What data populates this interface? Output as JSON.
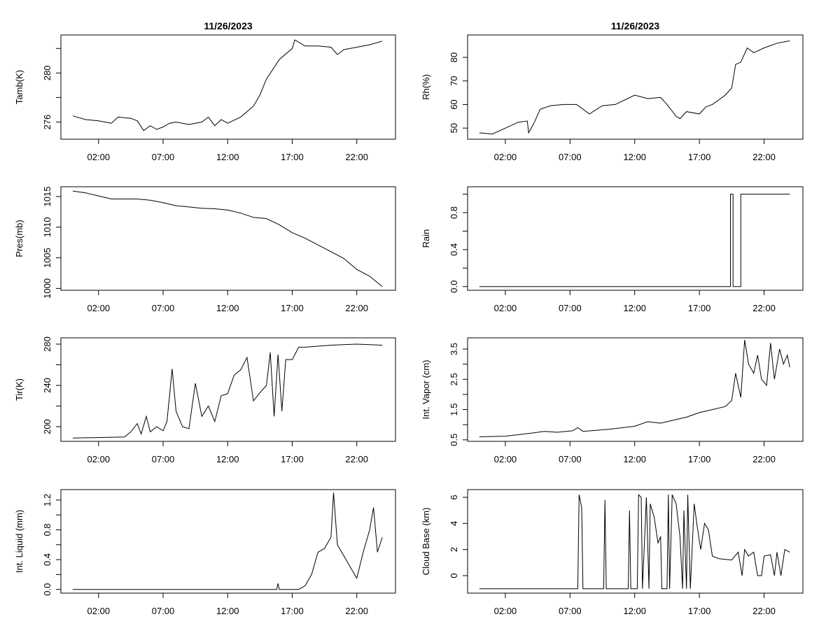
{
  "chart_data": [
    {
      "type": "line",
      "title": "11/26/2023",
      "ylabel": "Tamb(K)",
      "ylim": [
        274.6,
        283.1
      ],
      "yticks": [
        276,
        278,
        280,
        282
      ],
      "yticklabels": [
        "276",
        "",
        "280",
        ""
      ],
      "xlim": [
        "-00:55",
        "25:00"
      ],
      "xticks": [
        "02:00",
        "07:00",
        "12:00",
        "17:00",
        "22:00"
      ],
      "points": [
        [
          "00:00",
          276.5
        ],
        [
          "01:00",
          276.2
        ],
        [
          "02:00",
          276.1
        ],
        [
          "03:00",
          275.9
        ],
        [
          "03:30",
          276.4
        ],
        [
          "04:30",
          276.3
        ],
        [
          "05:00",
          276.1
        ],
        [
          "05:30",
          275.3
        ],
        [
          "06:00",
          275.7
        ],
        [
          "06:30",
          275.4
        ],
        [
          "07:00",
          275.6
        ],
        [
          "07:30",
          275.9
        ],
        [
          "08:00",
          276.0
        ],
        [
          "09:00",
          275.8
        ],
        [
          "10:00",
          276.0
        ],
        [
          "10:30",
          276.4
        ],
        [
          "11:00",
          275.7
        ],
        [
          "11:30",
          276.2
        ],
        [
          "12:00",
          275.9
        ],
        [
          "13:00",
          276.4
        ],
        [
          "14:00",
          277.3
        ],
        [
          "14:30",
          278.2
        ],
        [
          "15:00",
          279.5
        ],
        [
          "16:00",
          281.1
        ],
        [
          "17:00",
          282.0
        ],
        [
          "17:12",
          282.7
        ],
        [
          "18:00",
          282.2
        ],
        [
          "19:00",
          282.2
        ],
        [
          "20:00",
          282.1
        ],
        [
          "20:30",
          281.5
        ],
        [
          "21:00",
          281.9
        ],
        [
          "22:00",
          282.1
        ],
        [
          "23:00",
          282.3
        ],
        [
          "23:59",
          282.6
        ]
      ]
    },
    {
      "type": "line",
      "title": "",
      "ylabel": "Pres(mb)",
      "ylim": [
        999.7,
        1016.6
      ],
      "yticks": [
        1000,
        1005,
        1010,
        1015
      ],
      "yticklabels": [
        "1000",
        "1005",
        "1010",
        "1015"
      ],
      "xlim": [
        "-00:55",
        "25:00"
      ],
      "xticks": [
        "02:00",
        "07:00",
        "12:00",
        "17:00",
        "22:00"
      ],
      "points": [
        [
          "00:00",
          1015.9
        ],
        [
          "01:00",
          1015.6
        ],
        [
          "02:00",
          1015.1
        ],
        [
          "03:00",
          1014.6
        ],
        [
          "05:00",
          1014.6
        ],
        [
          "06:00",
          1014.4
        ],
        [
          "07:00",
          1014.0
        ],
        [
          "08:00",
          1013.5
        ],
        [
          "09:00",
          1013.3
        ],
        [
          "10:00",
          1013.1
        ],
        [
          "11:00",
          1013.0
        ],
        [
          "12:00",
          1012.8
        ],
        [
          "13:00",
          1012.3
        ],
        [
          "14:00",
          1011.6
        ],
        [
          "15:00",
          1011.4
        ],
        [
          "16:00",
          1010.4
        ],
        [
          "17:00",
          1009.1
        ],
        [
          "18:00",
          1008.2
        ],
        [
          "19:00",
          1007.1
        ],
        [
          "20:00",
          1006.0
        ],
        [
          "21:00",
          1004.9
        ],
        [
          "22:00",
          1003.1
        ],
        [
          "23:00",
          1002.0
        ],
        [
          "23:59",
          1000.3
        ]
      ]
    },
    {
      "type": "line",
      "title": "",
      "ylabel": "Tir(K)",
      "ylim": [
        185.8,
        286.1
      ],
      "yticks": [
        200,
        220,
        240,
        260,
        280
      ],
      "yticklabels": [
        "200",
        "",
        "240",
        "",
        "280"
      ],
      "xlim": [
        "-00:55",
        "25:00"
      ],
      "xticks": [
        "02:00",
        "07:00",
        "12:00",
        "17:00",
        "22:00"
      ],
      "points": [
        [
          "00:00",
          189
        ],
        [
          "04:00",
          190
        ],
        [
          "04:30",
          195
        ],
        [
          "05:00",
          203
        ],
        [
          "05:18",
          193
        ],
        [
          "05:42",
          210
        ],
        [
          "06:00",
          195
        ],
        [
          "06:30",
          200
        ],
        [
          "07:00",
          196
        ],
        [
          "07:18",
          205
        ],
        [
          "07:30",
          230
        ],
        [
          "07:42",
          256
        ],
        [
          "08:00",
          215
        ],
        [
          "08:30",
          200
        ],
        [
          "09:00",
          198
        ],
        [
          "09:30",
          242
        ],
        [
          "10:00",
          210
        ],
        [
          "10:30",
          220
        ],
        [
          "11:00",
          205
        ],
        [
          "11:30",
          230
        ],
        [
          "12:00",
          232
        ],
        [
          "12:30",
          250
        ],
        [
          "13:00",
          255
        ],
        [
          "13:30",
          267
        ],
        [
          "14:00",
          225
        ],
        [
          "14:30",
          233
        ],
        [
          "15:00",
          240
        ],
        [
          "15:18",
          272
        ],
        [
          "15:36",
          210
        ],
        [
          "15:54",
          270
        ],
        [
          "16:12",
          215
        ],
        [
          "16:30",
          265
        ],
        [
          "17:00",
          265
        ],
        [
          "17:30",
          277
        ],
        [
          "18:00",
          277
        ],
        [
          "20:00",
          279
        ],
        [
          "22:00",
          280
        ],
        [
          "23:59",
          279
        ]
      ]
    },
    {
      "type": "line",
      "title": "",
      "ylabel": "Int. Liquid (mm)",
      "ylim": [
        -0.05,
        1.34
      ],
      "yticks": [
        0,
        0.2,
        0.4,
        0.6,
        0.8,
        1.0,
        1.2
      ],
      "yticklabels": [
        "0.0",
        "",
        "0.4",
        "",
        "0.8",
        "",
        "1.2"
      ],
      "xlim": [
        "-00:55",
        "25:00"
      ],
      "xticks": [
        "02:00",
        "07:00",
        "12:00",
        "17:00",
        "22:00"
      ],
      "points": [
        [
          "00:00",
          0
        ],
        [
          "15:48",
          0
        ],
        [
          "15:54",
          0.08
        ],
        [
          "16:00",
          0
        ],
        [
          "17:30",
          0
        ],
        [
          "18:00",
          0.05
        ],
        [
          "18:30",
          0.2
        ],
        [
          "19:00",
          0.5
        ],
        [
          "19:30",
          0.55
        ],
        [
          "20:00",
          0.7
        ],
        [
          "20:12",
          1.3
        ],
        [
          "20:30",
          0.6
        ],
        [
          "21:00",
          0.45
        ],
        [
          "21:30",
          0.3
        ],
        [
          "22:00",
          0.15
        ],
        [
          "22:30",
          0.5
        ],
        [
          "23:00",
          0.8
        ],
        [
          "23:18",
          1.1
        ],
        [
          "23:36",
          0.5
        ],
        [
          "23:59",
          0.7
        ]
      ]
    },
    {
      "type": "line",
      "title": "11/26/2023",
      "ylabel": "Rh(%)",
      "ylim": [
        45.3,
        89.5
      ],
      "yticks": [
        50,
        60,
        70,
        80
      ],
      "yticklabels": [
        "50",
        "60",
        "70",
        "80"
      ],
      "xlim": [
        "-00:55",
        "25:00"
      ],
      "xticks": [
        "02:00",
        "07:00",
        "12:00",
        "17:00",
        "22:00"
      ],
      "points": [
        [
          "00:00",
          48
        ],
        [
          "01:00",
          47.5
        ],
        [
          "02:00",
          50
        ],
        [
          "03:00",
          52.5
        ],
        [
          "03:42",
          53
        ],
        [
          "03:48",
          48
        ],
        [
          "04:12",
          52
        ],
        [
          "04:42",
          58
        ],
        [
          "05:30",
          59.5
        ],
        [
          "06:30",
          60
        ],
        [
          "07:30",
          60
        ],
        [
          "08:30",
          56
        ],
        [
          "09:30",
          59.5
        ],
        [
          "10:30",
          60
        ],
        [
          "12:00",
          64
        ],
        [
          "13:00",
          62.5
        ],
        [
          "14:00",
          63
        ],
        [
          "14:30",
          60
        ],
        [
          "15:12",
          55
        ],
        [
          "15:30",
          54
        ],
        [
          "16:00",
          57
        ],
        [
          "17:00",
          56
        ],
        [
          "17:30",
          59
        ],
        [
          "18:00",
          60
        ],
        [
          "19:00",
          64
        ],
        [
          "19:30",
          67
        ],
        [
          "19:48",
          77
        ],
        [
          "20:12",
          78
        ],
        [
          "20:42",
          84
        ],
        [
          "21:12",
          82
        ],
        [
          "22:00",
          84
        ],
        [
          "23:00",
          86
        ],
        [
          "23:59",
          87
        ]
      ]
    },
    {
      "type": "line",
      "title": "",
      "ylabel": "Rain",
      "ylim": [
        -0.04,
        1.08
      ],
      "yticks": [
        0,
        0.2,
        0.4,
        0.6,
        0.8,
        1.0
      ],
      "yticklabels": [
        "0.0",
        "",
        "0.4",
        "",
        "0.8",
        ""
      ],
      "xlim": [
        "-00:55",
        "25:00"
      ],
      "xticks": [
        "02:00",
        "07:00",
        "12:00",
        "17:00",
        "22:00"
      ],
      "points": [
        [
          "00:00",
          0
        ],
        [
          "19:24",
          0
        ],
        [
          "19:24",
          1
        ],
        [
          "19:36",
          1
        ],
        [
          "19:36",
          0
        ],
        [
          "20:12",
          0
        ],
        [
          "20:12",
          1
        ],
        [
          "23:59",
          1
        ]
      ]
    },
    {
      "type": "line",
      "title": "",
      "ylabel": "Int. Vapor (cm)",
      "ylim": [
        0.45,
        3.87
      ],
      "yticks": [
        0.5,
        1.0,
        1.5,
        2.0,
        2.5,
        3.0,
        3.5
      ],
      "yticklabels": [
        "0.5",
        "",
        "1.5",
        "",
        "2.5",
        "",
        "3.5"
      ],
      "xlim": [
        "-00:55",
        "25:00"
      ],
      "xticks": [
        "02:00",
        "07:00",
        "12:00",
        "17:00",
        "22:00"
      ],
      "points": [
        [
          "00:00",
          0.6
        ],
        [
          "02:00",
          0.62
        ],
        [
          "04:00",
          0.72
        ],
        [
          "05:00",
          0.78
        ],
        [
          "06:00",
          0.75
        ],
        [
          "07:12",
          0.8
        ],
        [
          "07:36",
          0.9
        ],
        [
          "08:00",
          0.78
        ],
        [
          "10:00",
          0.85
        ],
        [
          "12:00",
          0.95
        ],
        [
          "13:00",
          1.1
        ],
        [
          "14:00",
          1.05
        ],
        [
          "16:00",
          1.25
        ],
        [
          "17:00",
          1.4
        ],
        [
          "18:00",
          1.5
        ],
        [
          "19:00",
          1.6
        ],
        [
          "19:30",
          1.8
        ],
        [
          "19:48",
          2.7
        ],
        [
          "20:12",
          1.9
        ],
        [
          "20:30",
          3.8
        ],
        [
          "20:48",
          3.0
        ],
        [
          "21:12",
          2.7
        ],
        [
          "21:30",
          3.3
        ],
        [
          "21:48",
          2.5
        ],
        [
          "22:12",
          2.3
        ],
        [
          "22:30",
          3.7
        ],
        [
          "22:48",
          2.5
        ],
        [
          "23:12",
          3.5
        ],
        [
          "23:30",
          3.0
        ],
        [
          "23:48",
          3.3
        ],
        [
          "23:59",
          2.9
        ]
      ]
    },
    {
      "type": "line",
      "title": "",
      "ylabel": "Cloud Base (km)",
      "ylim": [
        -1.34,
        6.59
      ],
      "yticks": [
        0,
        2,
        4,
        6
      ],
      "yticklabels": [
        "0",
        "2",
        "4",
        "6"
      ],
      "xlim": [
        "-00:55",
        "25:00"
      ],
      "xticks": [
        "02:00",
        "07:00",
        "12:00",
        "17:00",
        "22:00"
      ],
      "points": [
        [
          "00:00",
          -1
        ],
        [
          "07:36",
          -1
        ],
        [
          "07:42",
          6.2
        ],
        [
          "07:54",
          5.2
        ],
        [
          "08:00",
          -1
        ],
        [
          "09:36",
          -1
        ],
        [
          "09:42",
          5.8
        ],
        [
          "09:48",
          -1
        ],
        [
          "11:30",
          -1
        ],
        [
          "11:36",
          5.0
        ],
        [
          "11:42",
          -1
        ],
        [
          "12:12",
          -1
        ],
        [
          "12:18",
          6.2
        ],
        [
          "12:30",
          6
        ],
        [
          "12:36",
          -1
        ],
        [
          "12:54",
          6
        ],
        [
          "13:06",
          -1
        ],
        [
          "13:12",
          5.5
        ],
        [
          "13:30",
          4.5
        ],
        [
          "13:48",
          2.5
        ],
        [
          "14:00",
          3
        ],
        [
          "14:06",
          -1
        ],
        [
          "14:30",
          -1
        ],
        [
          "14:36",
          6.2
        ],
        [
          "14:42",
          -1
        ],
        [
          "14:54",
          6.2
        ],
        [
          "15:12",
          5.5
        ],
        [
          "15:30",
          3
        ],
        [
          "15:42",
          -1
        ],
        [
          "15:48",
          5
        ],
        [
          "16:00",
          -1
        ],
        [
          "16:06",
          6.2
        ],
        [
          "16:18",
          -1
        ],
        [
          "16:36",
          5.5
        ],
        [
          "16:48",
          4
        ],
        [
          "17:06",
          2
        ],
        [
          "17:24",
          4
        ],
        [
          "17:42",
          3.5
        ],
        [
          "18:00",
          1.5
        ],
        [
          "18:30",
          1.3
        ],
        [
          "19:30",
          1.2
        ],
        [
          "20:00",
          1.8
        ],
        [
          "20:18",
          0
        ],
        [
          "20:30",
          2
        ],
        [
          "20:48",
          1.5
        ],
        [
          "21:12",
          1.8
        ],
        [
          "21:30",
          0
        ],
        [
          "21:48",
          0
        ],
        [
          "22:00",
          1.5
        ],
        [
          "22:30",
          1.6
        ],
        [
          "22:48",
          0
        ],
        [
          "23:00",
          1.8
        ],
        [
          "23:18",
          0
        ],
        [
          "23:36",
          2
        ],
        [
          "23:59",
          1.8
        ]
      ]
    }
  ]
}
